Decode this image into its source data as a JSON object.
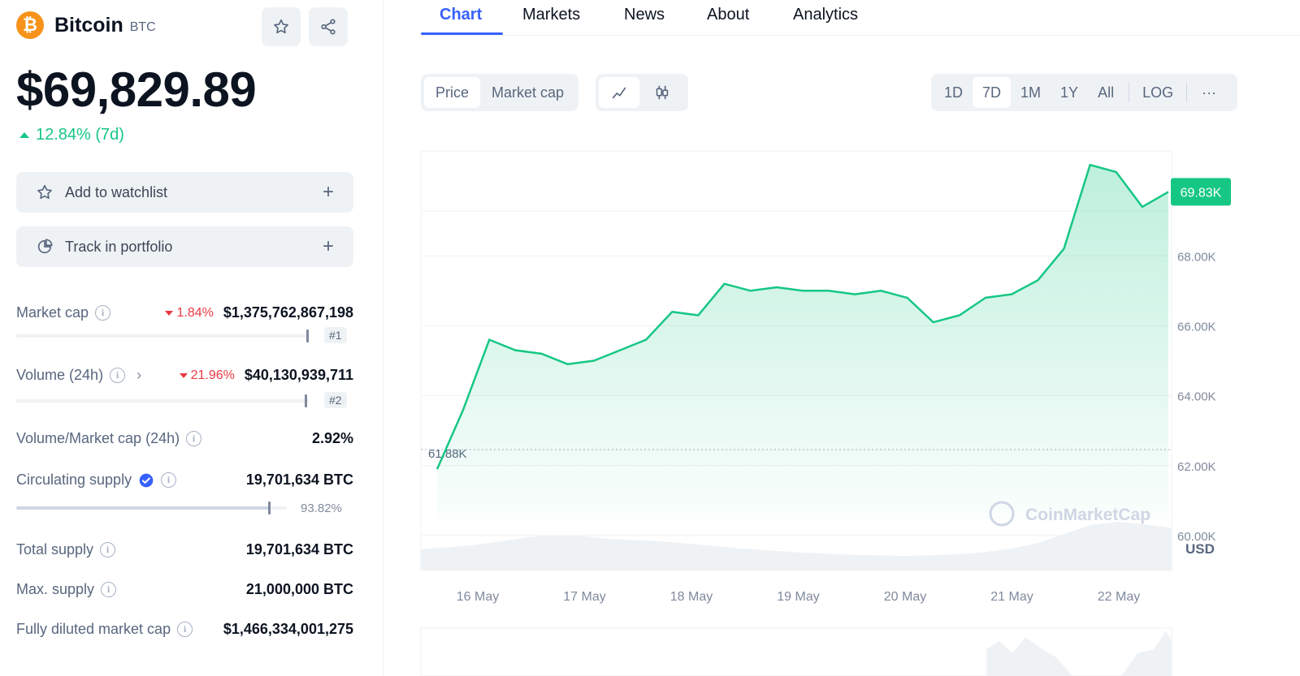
{
  "coin": {
    "name": "Bitcoin",
    "symbol": "BTC",
    "logo_glyph": "₿",
    "price": "$69,829.89",
    "change": "12.84% (7d)"
  },
  "actions": {
    "watchlist": "Add to watchlist",
    "portfolio": "Track in portfolio",
    "plus": "+"
  },
  "stats": {
    "market_cap": {
      "label": "Market cap",
      "change": "1.84%",
      "value": "$1,375,762,867,198",
      "rank": "#1"
    },
    "volume": {
      "label": "Volume (24h)",
      "change": "21.96%",
      "value": "$40,130,939,711",
      "rank": "#2"
    },
    "vol_mcap": {
      "label": "Volume/Market cap (24h)",
      "value": "2.92%"
    },
    "circulating": {
      "label": "Circulating supply",
      "value": "19,701,634 BTC",
      "percent": "93.82%",
      "fraction": 0.9382
    },
    "total": {
      "label": "Total supply",
      "value": "19,701,634 BTC"
    },
    "max": {
      "label": "Max. supply",
      "value": "21,000,000 BTC"
    },
    "fdmc": {
      "label": "Fully diluted market cap",
      "value": "$1,466,334,001,275"
    }
  },
  "tabs": [
    "Chart",
    "Markets",
    "News",
    "About",
    "Analytics"
  ],
  "toolbar": {
    "metric": [
      "Price",
      "Market cap"
    ],
    "ranges": [
      "1D",
      "7D",
      "1M",
      "1Y",
      "All"
    ],
    "log": "LOG",
    "more": "···",
    "selected_range": "7D"
  },
  "colors": {
    "accent": "#3861fb",
    "up": "#16c784",
    "down": "#ea3943",
    "brand": "#f7931a"
  },
  "chart_data": {
    "type": "area",
    "currency_label": "USD",
    "watermark": "CoinMarketCap",
    "current_label": "69.83K",
    "low_label": "61.88K",
    "low_value": 61880,
    "current_value": 69829.89,
    "y_ticks": [
      "68.00K",
      "66.00K",
      "64.00K",
      "62.00K",
      "60.00K"
    ],
    "y_tick_values": [
      68000,
      66000,
      64000,
      62000,
      60000
    ],
    "ylim": [
      59000,
      71000
    ],
    "x_ticks": [
      "16 May",
      "17 May",
      "18 May",
      "19 May",
      "20 May",
      "21 May",
      "22 May"
    ],
    "x": [
      "15 May 18:00",
      "16 May 00:00",
      "16 May 06:00",
      "16 May 12:00",
      "16 May 18:00",
      "17 May 00:00",
      "17 May 06:00",
      "17 May 12:00",
      "17 May 18:00",
      "18 May 00:00",
      "18 May 06:00",
      "18 May 12:00",
      "18 May 18:00",
      "19 May 00:00",
      "19 May 06:00",
      "19 May 12:00",
      "19 May 18:00",
      "20 May 00:00",
      "20 May 06:00",
      "20 May 12:00",
      "20 May 18:00",
      "21 May 00:00",
      "21 May 06:00",
      "21 May 12:00",
      "21 May 18:00",
      "22 May 00:00",
      "22 May 06:00",
      "22 May 12:00",
      "22 May 18:00"
    ],
    "values": [
      61900,
      63600,
      65600,
      65300,
      65200,
      64900,
      65000,
      65300,
      65600,
      66400,
      66300,
      67200,
      67000,
      67100,
      67000,
      67000,
      66900,
      67000,
      66800,
      66100,
      66300,
      66800,
      66900,
      67300,
      68200,
      70600,
      70400,
      69400,
      69830
    ],
    "volume": [
      0.35,
      0.38,
      0.42,
      0.48,
      0.55,
      0.58,
      0.57,
      0.52,
      0.5,
      0.48,
      0.44,
      0.4,
      0.36,
      0.33,
      0.3,
      0.28,
      0.26,
      0.25,
      0.24,
      0.25,
      0.27,
      0.3,
      0.36,
      0.45,
      0.6,
      0.75,
      0.8,
      0.76,
      0.7
    ]
  }
}
